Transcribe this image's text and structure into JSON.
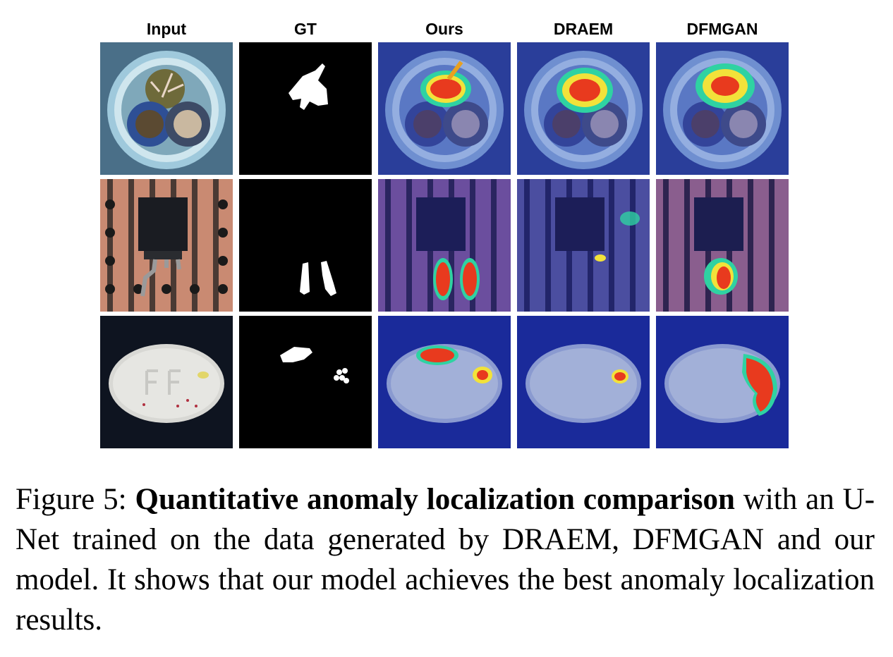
{
  "figure": {
    "columns": [
      "Input",
      "GT",
      "Ours",
      "DRAEM",
      "DFMGAN"
    ]
  },
  "caption": {
    "label": "Figure 5:",
    "bold": "Quantitative anomaly localization comparison",
    "rest": "with an U-Net trained on the data generated by DRAEM, DFMGAN and our model. It shows that our model achieves the best anomaly localization results."
  }
}
